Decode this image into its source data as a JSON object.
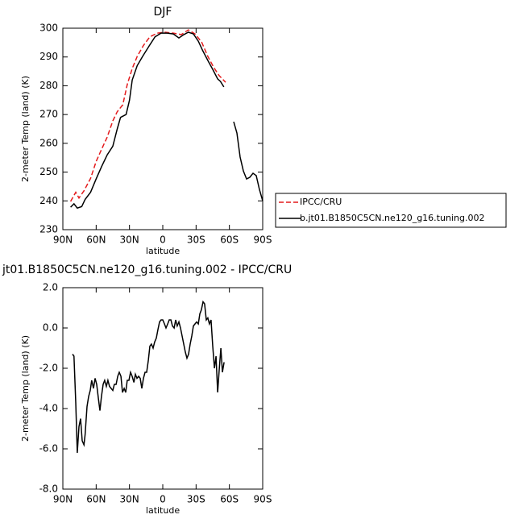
{
  "chart_data": [
    {
      "type": "line",
      "title": "DJF",
      "xlabel": "latitude",
      "ylabel": "2-meter Temp (land) (K)",
      "xlim": [
        90,
        -90
      ],
      "ylim": [
        230,
        300
      ],
      "xticks": [
        {
          "value": 90,
          "label": "90N"
        },
        {
          "value": 60,
          "label": "60N"
        },
        {
          "value": 30,
          "label": "30N"
        },
        {
          "value": 0,
          "label": "0"
        },
        {
          "value": -30,
          "label": "30S"
        },
        {
          "value": -60,
          "label": "60S"
        },
        {
          "value": -90,
          "label": "90S"
        }
      ],
      "yticks": [
        230,
        240,
        250,
        260,
        270,
        280,
        290,
        300
      ],
      "legend": "right",
      "series": [
        {
          "name": "IPCC/CRU",
          "color": "#e41a1c",
          "line_style": "dashed",
          "x": [
            83,
            78.4,
            75.5,
            71,
            65,
            60,
            55,
            50,
            45,
            41,
            36,
            32,
            27.5,
            23,
            17.4,
            11.6,
            5,
            -2.2,
            -9.5,
            -16.7,
            -23,
            -29,
            -35,
            -40.6,
            -46,
            -50.8,
            -56.6
          ],
          "values": [
            239.8,
            243,
            241,
            243.5,
            247.8,
            253.7,
            258,
            262.2,
            267.8,
            271,
            273.4,
            280.4,
            286,
            290.2,
            294,
            297,
            298.3,
            298.6,
            298.3,
            297.8,
            299.4,
            298,
            295.2,
            290.2,
            286.3,
            283.5,
            281.2
          ]
        },
        {
          "name": "b.jt01.B1850C5CN.ne120_g16.tuning.002",
          "color": "#000000",
          "line_style": "solid",
          "x": [
            83,
            80,
            77,
            73,
            70,
            65,
            60,
            55,
            50,
            45,
            41,
            38,
            33,
            30,
            27.5,
            23,
            18,
            12,
            7,
            1.5,
            -4,
            -9.5,
            -14.5,
            -19,
            -23,
            -27.6,
            -32,
            -36,
            -40.6,
            -45,
            -49.4,
            -52,
            -55,
            -60,
            -63.9,
            -66.8,
            -69.7,
            -72.6,
            -75.5,
            -78.4,
            -81.3,
            -84.2,
            -87,
            -90
          ],
          "values": [
            237.8,
            239,
            237.5,
            238,
            240.5,
            243,
            247.6,
            252,
            256,
            259,
            265,
            269,
            270,
            275,
            282,
            287,
            290.3,
            294,
            297,
            298.3,
            298.3,
            298,
            296.6,
            297.8,
            298.6,
            298,
            295.5,
            292.2,
            288.8,
            285.7,
            282.4,
            281.5,
            279.6,
            null,
            267.5,
            263.6,
            255.2,
            250.4,
            247.6,
            248.2,
            249.6,
            248.8,
            244,
            240
          ]
        }
      ]
    },
    {
      "type": "line",
      "title": "jt01.B1850C5CN.ne120_g16.tuning.002 - IPCC/CRU",
      "xlabel": "latitude",
      "ylabel": "2-meter Temp (land) (K)",
      "xlim": [
        90,
        -90
      ],
      "ylim": [
        -8,
        2
      ],
      "xticks": [
        {
          "value": 90,
          "label": "90N"
        },
        {
          "value": 60,
          "label": "60N"
        },
        {
          "value": 30,
          "label": "30N"
        },
        {
          "value": 0,
          "label": "0"
        },
        {
          "value": -30,
          "label": "30S"
        },
        {
          "value": -60,
          "label": "60S"
        },
        {
          "value": -90,
          "label": "90S"
        }
      ],
      "yticks": [
        {
          "value": -8,
          "label": "-8.0"
        },
        {
          "value": -6,
          "label": "-6.0"
        },
        {
          "value": -4,
          "label": "-4.0"
        },
        {
          "value": -2,
          "label": "-2.0"
        },
        {
          "value": 0,
          "label": "0.0"
        },
        {
          "value": 2,
          "label": "2.0"
        }
      ],
      "series": [
        {
          "color": "#000000",
          "line_style": "solid",
          "x": [
            81.3,
            80,
            78.4,
            77,
            75.5,
            74,
            72.6,
            71,
            70,
            68.2,
            66.8,
            65.3,
            64,
            62.4,
            61,
            59.5,
            58,
            56.6,
            55.2,
            53.7,
            52.3,
            50.8,
            49.4,
            48,
            46.5,
            45,
            43.6,
            42,
            40.6,
            39.2,
            37.7,
            36.3,
            34.8,
            33.4,
            32,
            30.5,
            29,
            27.6,
            26,
            24.7,
            23.2,
            21.8,
            20.3,
            18.9,
            17.4,
            16,
            14.5,
            13,
            11.6,
            10.2,
            8.7,
            7.3,
            5.8,
            4.4,
            2.9,
            1.5,
            0,
            -1.5,
            -2.9,
            -4.4,
            -5.8,
            -7.3,
            -8.7,
            -10.2,
            -11.6,
            -13,
            -14.5,
            -16,
            -17.4,
            -18.9,
            -20.3,
            -21.8,
            -23.2,
            -24.7,
            -26.1,
            -27.6,
            -29,
            -30.5,
            -32,
            -33.4,
            -34.8,
            -36.3,
            -37.7,
            -39.2,
            -40.6,
            -42,
            -43.5,
            -45,
            -46.5,
            -48,
            -49.4,
            -50.8,
            -52.3,
            -53.7,
            -55.2
          ],
          "values": [
            -1.3,
            -1.4,
            -3.7,
            -6.2,
            -4.9,
            -4.5,
            -5.6,
            -5.8,
            -5.3,
            -3.9,
            -3.4,
            -3.1,
            -2.6,
            -3.0,
            -2.5,
            -2.8,
            -3.5,
            -4.1,
            -3.4,
            -2.8,
            -2.6,
            -2.9,
            -2.6,
            -2.9,
            -3.0,
            -3.1,
            -2.8,
            -2.8,
            -2.4,
            -2.2,
            -2.4,
            -3.2,
            -3.0,
            -3.2,
            -2.6,
            -2.6,
            -2.2,
            -2.4,
            -2.7,
            -2.3,
            -2.5,
            -2.4,
            -2.5,
            -3.0,
            -2.5,
            -2.2,
            -2.2,
            -1.6,
            -0.9,
            -0.8,
            -1.0,
            -0.7,
            -0.5,
            -0.1,
            0.3,
            0.4,
            0.4,
            0.2,
            0.0,
            0.2,
            0.4,
            0.4,
            0.1,
            0.0,
            0.4,
            0.1,
            0.3,
            0.0,
            -0.4,
            -0.8,
            -1.2,
            -1.5,
            -1.3,
            -0.8,
            -0.4,
            0.1,
            0.2,
            0.3,
            0.2,
            0.7,
            0.9,
            1.3,
            1.2,
            0.4,
            0.5,
            0.2,
            0.4,
            -0.9,
            -2.0,
            -1.4,
            -3.2,
            -2.1,
            -1.0,
            -2.2,
            -1.7
          ]
        }
      ]
    }
  ]
}
